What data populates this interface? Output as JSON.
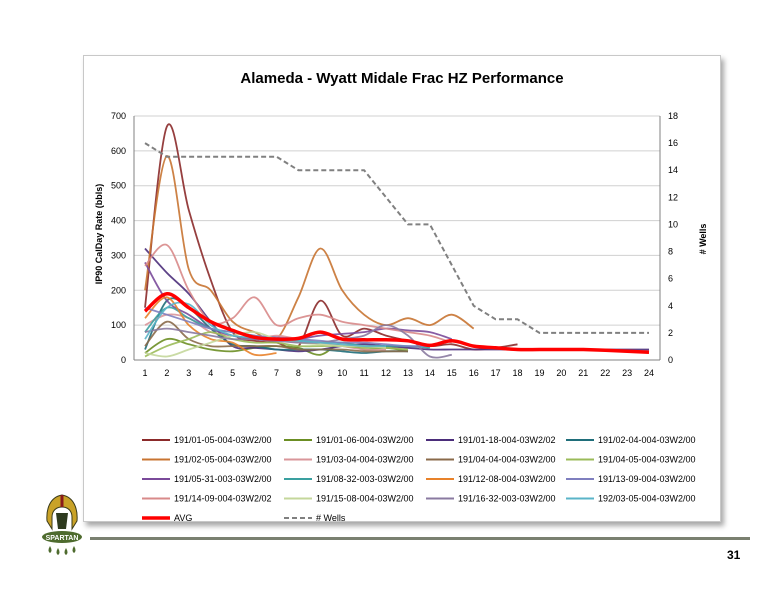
{
  "page": {
    "number": "31"
  },
  "logo": {
    "text": "SPARTAN"
  },
  "chart_data": {
    "type": "line",
    "title": "Alameda - Wyatt Midale Frac HZ Performance",
    "ylabel": "IP90 CalDay Rate (bbls)",
    "y2label": "# Wells",
    "x": [
      1,
      2,
      3,
      4,
      5,
      6,
      7,
      8,
      9,
      10,
      11,
      12,
      13,
      14,
      15,
      16,
      17,
      18,
      19,
      20,
      21,
      22,
      23,
      24
    ],
    "ylim": [
      0,
      700
    ],
    "yticks": [
      0,
      100,
      200,
      300,
      400,
      500,
      600,
      700
    ],
    "y2lim": [
      0,
      18
    ],
    "y2ticks": [
      0,
      2,
      4,
      6,
      8,
      10,
      12,
      14,
      16,
      18
    ],
    "grid": "horizontal",
    "legend_position": "bottom",
    "series": [
      {
        "name": "191/01-05-004-03W2/00",
        "color": "#8b2a2a",
        "values": [
          150,
          670,
          430,
          230,
          80,
          55,
          50,
          40,
          170,
          70,
          90,
          70,
          55,
          40,
          45,
          30,
          35,
          45,
          null,
          null,
          null,
          null,
          null,
          null
        ]
      },
      {
        "name": "191/01-06-004-03W2/00",
        "color": "#6b8e23",
        "values": [
          20,
          60,
          45,
          30,
          25,
          35,
          40,
          35,
          15,
          50,
          30,
          35,
          25,
          null,
          null,
          null,
          null,
          null,
          null,
          null,
          null,
          null,
          null,
          null
        ]
      },
      {
        "name": "191/01-18-004-03W2/02",
        "color": "#4b2d7a",
        "values": [
          320,
          250,
          190,
          110,
          40,
          35,
          30,
          25,
          30,
          40,
          45,
          40,
          35,
          30,
          30,
          30,
          30,
          30,
          30,
          30,
          30,
          30,
          30,
          30
        ]
      },
      {
        "name": "191/02-04-004-03W2/00",
        "color": "#1f6e7a",
        "values": [
          30,
          170,
          150,
          90,
          45,
          40,
          30,
          30,
          30,
          25,
          20,
          25,
          25,
          null,
          null,
          null,
          null,
          null,
          null,
          null,
          null,
          null,
          null,
          null
        ]
      },
      {
        "name": "191/02-05-004-03W2/00",
        "color": "#c87432",
        "values": [
          200,
          585,
          260,
          200,
          110,
          80,
          60,
          180,
          320,
          200,
          130,
          100,
          120,
          100,
          130,
          90,
          null,
          null,
          null,
          null,
          null,
          null,
          null,
          null
        ]
      },
      {
        "name": "191/03-04-004-03W2/00",
        "color": "#d9969a",
        "values": [
          100,
          130,
          120,
          80,
          70,
          60,
          70,
          60,
          50,
          40,
          30,
          30,
          null,
          null,
          null,
          null,
          null,
          null,
          null,
          null,
          null,
          null,
          null,
          null
        ]
      },
      {
        "name": "191/04-04-004-03W2/00",
        "color": "#8a6a4a",
        "values": [
          40,
          110,
          60,
          40,
          40,
          40,
          40,
          30,
          30,
          30,
          25,
          25,
          25,
          null,
          null,
          null,
          null,
          null,
          null,
          null,
          null,
          null,
          null,
          null
        ]
      },
      {
        "name": "191/04-05-004-03W2/00",
        "color": "#9bbb59",
        "values": [
          10,
          40,
          60,
          80,
          60,
          50,
          50,
          40,
          40,
          40,
          35,
          35,
          30,
          null,
          null,
          null,
          null,
          null,
          null,
          null,
          null,
          null,
          null,
          null
        ]
      },
      {
        "name": "191/05-31-003-03W2/00",
        "color": "#7a4a9a",
        "values": [
          280,
          170,
          130,
          90,
          70,
          60,
          55,
          60,
          70,
          75,
          80,
          90,
          85,
          80,
          60,
          null,
          null,
          null,
          null,
          null,
          null,
          null,
          null,
          null
        ]
      },
      {
        "name": "191/08-32-003-03W2/00",
        "color": "#3aa0a0",
        "values": [
          80,
          150,
          120,
          90,
          80,
          70,
          60,
          55,
          50,
          50,
          40,
          40,
          40,
          35,
          null,
          null,
          null,
          null,
          null,
          null,
          null,
          null,
          null,
          null
        ]
      },
      {
        "name": "191/12-08-004-03W2/00",
        "color": "#e8822a",
        "values": [
          120,
          180,
          100,
          60,
          50,
          15,
          20,
          null,
          null,
          null,
          null,
          null,
          null,
          null,
          null,
          null,
          null,
          null,
          null,
          null,
          null,
          null,
          null,
          null
        ]
      },
      {
        "name": "191/13-09-004-03W2/00",
        "color": "#7f7fbf",
        "values": [
          150,
          130,
          110,
          90,
          80,
          70,
          65,
          60,
          55,
          50,
          50,
          45,
          40,
          40,
          null,
          null,
          null,
          null,
          null,
          null,
          null,
          null,
          null,
          null
        ]
      },
      {
        "name": "191/14-09-004-03W2/02",
        "color": "#d88a8a",
        "values": [
          270,
          330,
          200,
          110,
          120,
          180,
          100,
          120,
          130,
          110,
          100,
          90,
          80,
          70,
          50,
          null,
          null,
          null,
          null,
          null,
          null,
          null,
          null,
          null
        ]
      },
      {
        "name": "191/15-08-004-03W2/00",
        "color": "#c4d79b",
        "values": [
          20,
          10,
          30,
          50,
          70,
          80,
          60,
          50,
          45,
          40,
          40,
          35,
          null,
          null,
          null,
          null,
          null,
          null,
          null,
          null,
          null,
          null,
          null,
          null
        ]
      },
      {
        "name": "191/16-32-003-03W2/00",
        "color": "#8a7aa0",
        "values": [
          80,
          90,
          80,
          70,
          60,
          60,
          55,
          50,
          50,
          60,
          70,
          100,
          70,
          10,
          15,
          null,
          null,
          null,
          null,
          null,
          null,
          null,
          null,
          null
        ]
      },
      {
        "name": "192/03-05-004-03W2/00",
        "color": "#5ab4c8",
        "values": [
          60,
          150,
          160,
          100,
          70,
          65,
          60,
          55,
          50,
          45,
          40,
          40,
          null,
          null,
          null,
          null,
          null,
          null,
          null,
          null,
          null,
          null,
          null,
          null
        ]
      },
      {
        "name": "AVG",
        "color": "#ff0000",
        "values": [
          140,
          190,
          150,
          110,
          85,
          65,
          60,
          62,
          80,
          60,
          58,
          58,
          55,
          42,
          55,
          40,
          35,
          30,
          30,
          30,
          30,
          28,
          25,
          22
        ]
      }
    ],
    "wells": {
      "name": "# Wells",
      "color": "#808080",
      "axis": "y2",
      "values": [
        16,
        15,
        15,
        15,
        15,
        15,
        15,
        14,
        14,
        14,
        14,
        12,
        10,
        10,
        7,
        4,
        3,
        3,
        2,
        2,
        2,
        2,
        2,
        2
      ]
    }
  }
}
